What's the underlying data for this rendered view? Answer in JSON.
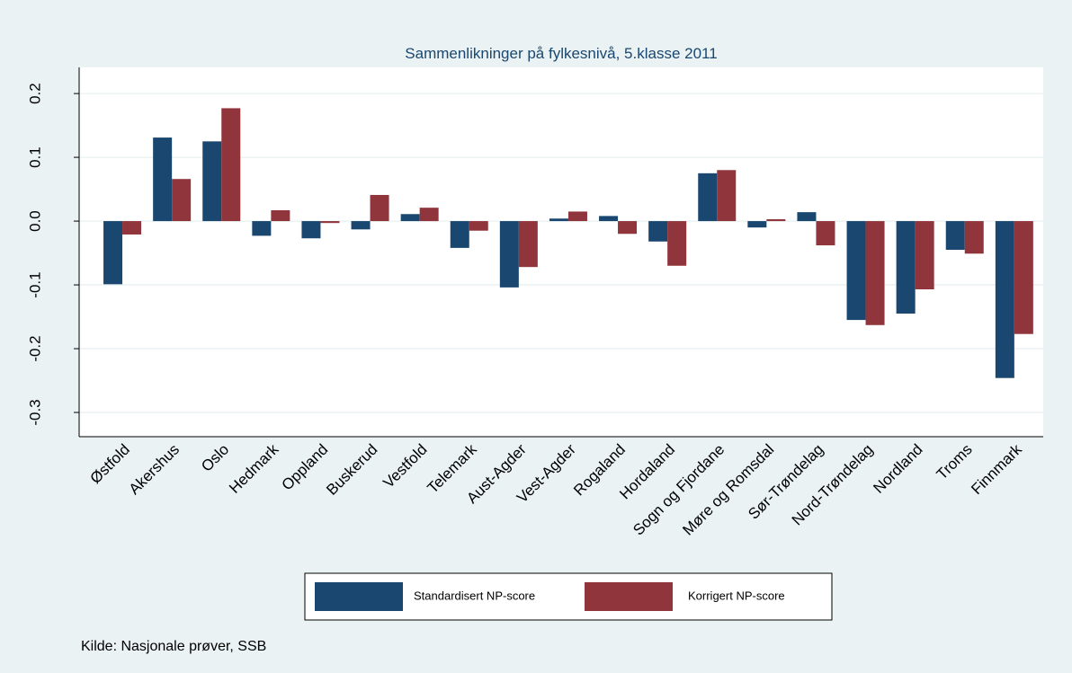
{
  "chart_data": {
    "type": "bar",
    "title": "Sammenlikninger på fylkesnivå, 5.klasse 2011",
    "note": "Kilde: Nasjonale prøver, SSB",
    "categories": [
      "Østfold",
      "Akershus",
      "Oslo",
      "Hedmark",
      "Oppland",
      "Buskerud",
      "Vestfold",
      "Telemark",
      "Aust-Agder",
      "Vest-Agder",
      "Rogaland",
      "Hordaland",
      "Sogn og Fjordane",
      "Møre og Romsdal",
      "Sør-Trøndelag",
      "Nord-Trøndelag",
      "Nordland",
      "Troms",
      "Finnmark"
    ],
    "series": [
      {
        "name": "Standardisert NP-score",
        "color": "#1a476f",
        "values": [
          -0.099,
          0.131,
          0.125,
          -0.023,
          -0.027,
          -0.013,
          0.011,
          -0.042,
          -0.104,
          0.004,
          0.008,
          -0.032,
          0.075,
          -0.01,
          0.014,
          -0.155,
          -0.145,
          -0.045,
          -0.246
        ]
      },
      {
        "name": "Korrigert NP-score",
        "color": "#90353b",
        "values": [
          -0.021,
          0.066,
          0.177,
          0.017,
          -0.003,
          0.041,
          0.021,
          -0.015,
          -0.072,
          0.015,
          -0.02,
          -0.07,
          0.08,
          0.003,
          -0.038,
          -0.163,
          -0.107,
          -0.051,
          -0.177
        ]
      }
    ],
    "ylim": [
      -0.338,
      0.241
    ],
    "yticks": [
      {
        "value": -0.3,
        "label": "-0.3"
      },
      {
        "value": -0.2,
        "label": "-0.2"
      },
      {
        "value": -0.1,
        "label": "-0.1"
      },
      {
        "value": 0,
        "label": "0.0"
      },
      {
        "value": 0.1,
        "label": "0.1"
      },
      {
        "value": 0.2,
        "label": "0.2"
      }
    ],
    "grid": true,
    "legend": "bottom"
  }
}
